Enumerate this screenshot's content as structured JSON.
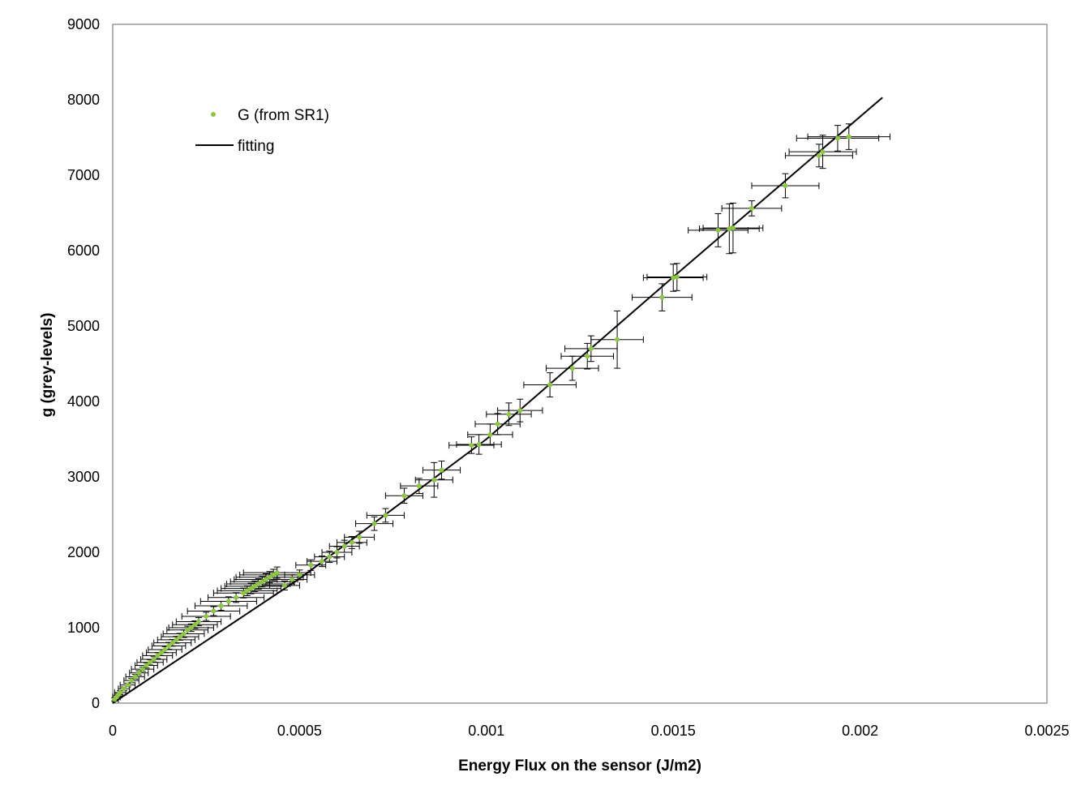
{
  "colors": {
    "points": "#8dc63f",
    "fit": "#000000",
    "errorbars": "#000000",
    "frame": "#808080"
  },
  "chart_data": {
    "type": "scatter",
    "xlabel": "Energy Flux on the sensor (J/m2)",
    "ylabel": "g (grey-levels)",
    "xlim": [
      0,
      0.0025
    ],
    "ylim": [
      0,
      9000
    ],
    "x_ticks": [
      0,
      0.0005,
      0.001,
      0.0015,
      0.002,
      0.0025
    ],
    "x_tick_labels": [
      "0",
      "0.0005",
      "0.001",
      "0.0015",
      "0.002",
      "0.0025"
    ],
    "y_ticks": [
      0,
      1000,
      2000,
      3000,
      4000,
      5000,
      6000,
      7000,
      8000,
      9000
    ],
    "y_tick_labels": [
      "0",
      "1000",
      "2000",
      "3000",
      "4000",
      "5000",
      "6000",
      "7000",
      "8000",
      "9000"
    ],
    "grid": false,
    "legend": "top-left",
    "series": [
      {
        "name": "G (from SR1)",
        "kind": "points-with-errorbars",
        "x": [
          5e-06,
          1e-05,
          1.5e-05,
          2e-05,
          3e-05,
          4e-05,
          5e-05,
          6e-05,
          7e-05,
          8e-05,
          9e-05,
          0.0001,
          0.00011,
          0.00012,
          0.00013,
          0.00014,
          0.00015,
          0.00016,
          0.00017,
          0.00018,
          0.00019,
          0.0002,
          0.00021,
          0.00022,
          0.00023,
          0.00025,
          0.00027,
          0.00029,
          0.00031,
          0.00033,
          0.00035,
          0.00036,
          0.00037,
          0.00038,
          0.00039,
          0.0004,
          0.00041,
          0.00042,
          0.00043,
          0.00044,
          0.00046,
          0.00048,
          0.0005,
          0.00053,
          0.00056,
          0.00058,
          0.0006,
          0.00062,
          0.00064,
          0.00066,
          0.0007,
          0.00073,
          0.00078,
          0.00082,
          0.00086,
          0.00088,
          0.00096,
          0.00098,
          0.00101,
          0.00103,
          0.00106,
          0.00109,
          0.00117,
          0.00123,
          0.00127,
          0.00128,
          0.00135,
          0.00147,
          0.0015,
          0.00151,
          0.00162,
          0.00165,
          0.00166,
          0.00171,
          0.0018,
          0.00189,
          0.0019,
          0.00194,
          0.00197
        ],
        "y": [
          50,
          80,
          110,
          140,
          190,
          240,
          300,
          350,
          400,
          450,
          500,
          540,
          580,
          630,
          670,
          710,
          760,
          800,
          840,
          880,
          920,
          970,
          1000,
          1040,
          1080,
          1150,
          1220,
          1290,
          1350,
          1400,
          1460,
          1490,
          1520,
          1550,
          1580,
          1610,
          1640,
          1670,
          1700,
          1730,
          1560,
          1640,
          1700,
          1830,
          1880,
          1940,
          2000,
          2080,
          2130,
          2200,
          2380,
          2490,
          2750,
          2880,
          2960,
          3090,
          3420,
          3430,
          3560,
          3700,
          3830,
          3880,
          4220,
          4440,
          4600,
          4700,
          4820,
          5380,
          5640,
          5650,
          6270,
          6290,
          6300,
          6560,
          6860,
          7260,
          7310,
          7490,
          7510
        ],
        "x_err": [
          1e-05,
          1e-05,
          1e-05,
          1.5e-05,
          1.5e-05,
          2e-05,
          2e-05,
          2.5e-05,
          2.5e-05,
          3e-05,
          3e-05,
          3.5e-05,
          3.5e-05,
          4e-05,
          4e-05,
          4.5e-05,
          4.5e-05,
          5e-05,
          5e-05,
          5e-05,
          5.5e-05,
          5.5e-05,
          6e-05,
          6e-05,
          6e-05,
          6.5e-05,
          7e-05,
          7e-05,
          7.5e-05,
          7.5e-05,
          8e-05,
          8e-05,
          8e-05,
          8e-05,
          8.5e-05,
          8.5e-05,
          8.5e-05,
          9e-05,
          9e-05,
          9e-05,
          4e-05,
          4e-05,
          4e-05,
          4e-05,
          4e-05,
          4e-05,
          4e-05,
          4e-05,
          4e-05,
          4e-05,
          5e-05,
          5e-05,
          5e-05,
          5e-05,
          5e-05,
          5e-05,
          6e-05,
          6e-05,
          6e-05,
          6e-05,
          6e-05,
          6e-05,
          7e-05,
          7e-05,
          7e-05,
          7e-05,
          7e-05,
          8e-05,
          8e-05,
          8e-05,
          8e-05,
          8e-05,
          8e-05,
          8e-05,
          9e-05,
          9e-05,
          9e-05,
          0.00011,
          0.00011
        ],
        "y_err": [
          20,
          20,
          20,
          25,
          25,
          25,
          30,
          30,
          30,
          30,
          35,
          35,
          35,
          40,
          40,
          40,
          45,
          45,
          45,
          45,
          50,
          50,
          50,
          50,
          55,
          55,
          60,
          60,
          60,
          65,
          65,
          65,
          70,
          70,
          70,
          70,
          75,
          75,
          75,
          75,
          60,
          60,
          65,
          70,
          70,
          75,
          75,
          80,
          80,
          80,
          90,
          90,
          100,
          100,
          230,
          120,
          110,
          130,
          140,
          140,
          150,
          150,
          160,
          160,
          170,
          170,
          380,
          180,
          180,
          180,
          220,
          330,
          330,
          100,
          160,
          150,
          220,
          170,
          170
        ]
      },
      {
        "name": "fitting",
        "kind": "line",
        "x": [
          0,
          0.0005,
          0.001,
          0.0015,
          0.00206
        ],
        "y": [
          0,
          1650,
          3500,
          5650,
          8030
        ]
      }
    ]
  }
}
